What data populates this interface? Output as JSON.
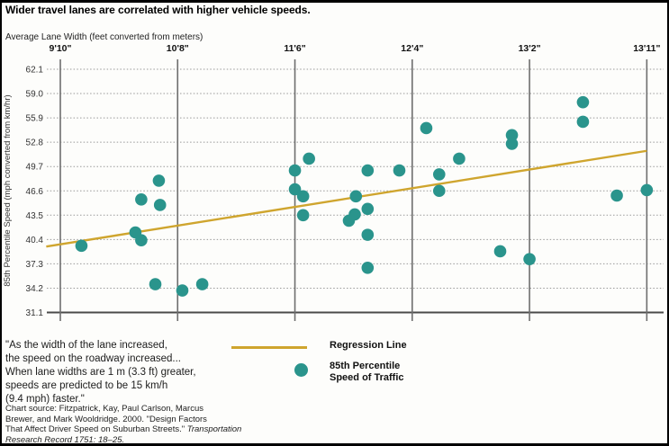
{
  "header": {
    "title": "Wider travel lanes are correlated with higher vehicle speeds."
  },
  "chart_data": {
    "type": "scatter",
    "title": "Wider travel lanes are correlated with higher vehicle speeds.",
    "xlabel": "Average Lane Width (feet converted from meters)",
    "ylabel": "85th Percentile Speed (mph converted from km/hr)",
    "x_ticks": [
      {
        "label": "9'10\"",
        "inches": 118
      },
      {
        "label": "10'8\"",
        "inches": 128
      },
      {
        "label": "11'6\"",
        "inches": 138
      },
      {
        "label": "12'4\"",
        "inches": 148
      },
      {
        "label": "13'2\"",
        "inches": 158
      },
      {
        "label": "13'11\"",
        "inches": 167
      }
    ],
    "y_ticks": [
      "62.1",
      "59.0",
      "55.9",
      "52.8",
      "49.7",
      "46.6",
      "43.5",
      "40.4",
      "37.3",
      "34.2",
      "31.1"
    ],
    "ylim": [
      31.1,
      62.1
    ],
    "grid": true,
    "legend_position": "bottom-left",
    "points": [
      {
        "lane_width": "10'0\"",
        "inches": 119.8,
        "mph": 39.6
      },
      {
        "lane_width": "10'4\"",
        "inches": 124.4,
        "mph": 41.3
      },
      {
        "lane_width": "10'5\"",
        "inches": 124.9,
        "mph": 40.3
      },
      {
        "lane_width": "10'5\"",
        "inches": 124.9,
        "mph": 45.5
      },
      {
        "lane_width": "10'6\"",
        "inches": 126.4,
        "mph": 47.9
      },
      {
        "lane_width": "10'6\"",
        "inches": 126.5,
        "mph": 44.8
      },
      {
        "lane_width": "10'6\"",
        "inches": 126.1,
        "mph": 34.7
      },
      {
        "lane_width": "10'8\"",
        "inches": 128.4,
        "mph": 33.9
      },
      {
        "lane_width": "10'10\"",
        "inches": 130.1,
        "mph": 34.7
      },
      {
        "lane_width": "11'6\"",
        "inches": 138.0,
        "mph": 49.2
      },
      {
        "lane_width": "11'6\"",
        "inches": 138.0,
        "mph": 46.8
      },
      {
        "lane_width": "11'7\"",
        "inches": 138.7,
        "mph": 45.9
      },
      {
        "lane_width": "11'7\"",
        "inches": 138.7,
        "mph": 43.5
      },
      {
        "lane_width": "11'7\"",
        "inches": 139.2,
        "mph": 50.7
      },
      {
        "lane_width": "11'11\"",
        "inches": 142.6,
        "mph": 42.8
      },
      {
        "lane_width": "11'11\"",
        "inches": 143.1,
        "mph": 43.6
      },
      {
        "lane_width": "11'11\"",
        "inches": 143.2,
        "mph": 45.9
      },
      {
        "lane_width": "12'0\"",
        "inches": 144.2,
        "mph": 49.2
      },
      {
        "lane_width": "12'0\"",
        "inches": 144.2,
        "mph": 44.3
      },
      {
        "lane_width": "12'0\"",
        "inches": 144.2,
        "mph": 41.0
      },
      {
        "lane_width": "12'0\"",
        "inches": 144.2,
        "mph": 36.8
      },
      {
        "lane_width": "12'3\"",
        "inches": 146.9,
        "mph": 49.2
      },
      {
        "lane_width": "12'5\"",
        "inches": 149.2,
        "mph": 54.6
      },
      {
        "lane_width": "12'6\"",
        "inches": 150.3,
        "mph": 48.7
      },
      {
        "lane_width": "12'6\"",
        "inches": 150.3,
        "mph": 46.6
      },
      {
        "lane_width": "12'8\"",
        "inches": 152.0,
        "mph": 50.7
      },
      {
        "lane_width": "13'0\"",
        "inches": 155.5,
        "mph": 38.9
      },
      {
        "lane_width": "13'1\"",
        "inches": 156.5,
        "mph": 53.7
      },
      {
        "lane_width": "13'1\"",
        "inches": 156.5,
        "mph": 52.6
      },
      {
        "lane_width": "13'2\"",
        "inches": 158.0,
        "mph": 37.9
      },
      {
        "lane_width": "13'6\"",
        "inches": 162.1,
        "mph": 57.9
      },
      {
        "lane_width": "13'6\"",
        "inches": 162.1,
        "mph": 55.4
      },
      {
        "lane_width": "13'9\"",
        "inches": 164.7,
        "mph": 46.0
      },
      {
        "lane_width": "13'11\"",
        "inches": 167.0,
        "mph": 46.7
      }
    ],
    "regression_line": {
      "from": {
        "inches": 116.8,
        "mph": 39.5
      },
      "to": {
        "inches": 167.0,
        "mph": 51.7
      }
    },
    "colors": {
      "dot": "#2a948c",
      "line": "#cfa52e"
    }
  },
  "legend": {
    "line_label": "Regression Line",
    "dot_label": "85th Percentile\nSpeed of Traffic"
  },
  "quote": "\"As the width of the lane increased,\nthe speed on the roadway increased...\nWhen lane widths are 1 m (3.3 ft) greater,\nspeeds are predicted to be 15 km/h\n(9.4 mph) faster.\"",
  "source": {
    "main": "Chart source: Fitzpatrick, Kay, Paul Carlson, Marcus\nBrewer, and Mark Wooldridge. 2000. \"Design Factors\nThat Affect Driver Speed on Suburban Streets.\"",
    "italic": "Transportation Research Record 1751: 18–25."
  }
}
